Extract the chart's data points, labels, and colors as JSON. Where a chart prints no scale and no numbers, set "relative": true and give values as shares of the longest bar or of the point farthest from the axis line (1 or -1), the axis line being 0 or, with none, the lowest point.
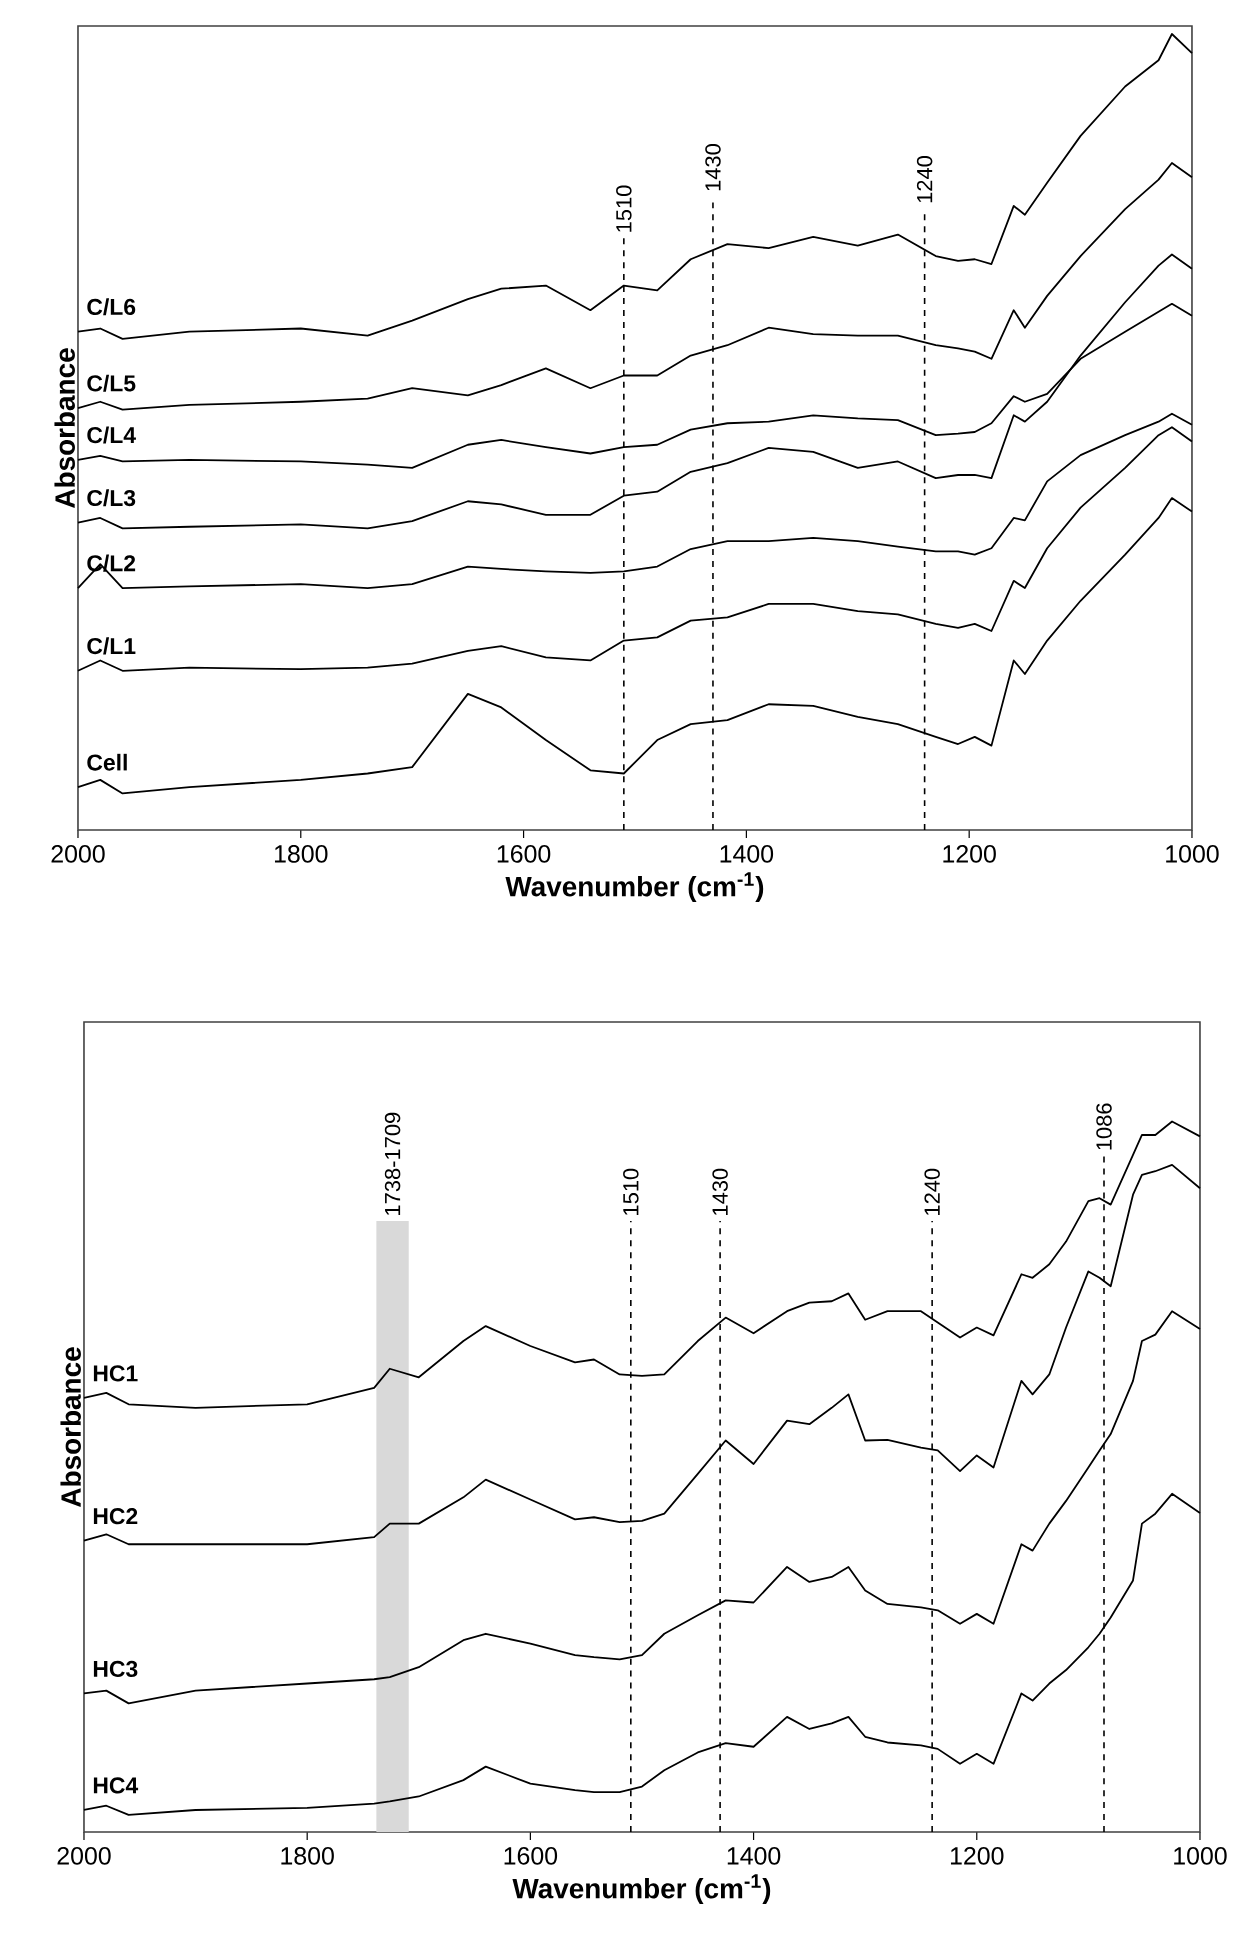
{
  "chart_data": [
    {
      "type": "line",
      "xlabel": "Wavenumber (cm$^{-1}$)",
      "ylabel": "Absorbance",
      "relative": true,
      "tick_labels": "x",
      "line_style": "solid",
      "xlim": [
        2000,
        1000
      ],
      "xticks": [
        2000,
        1800,
        1600,
        1400,
        1200,
        1000
      ],
      "x": [
        2000,
        1980,
        1960,
        1900,
        1800,
        1740,
        1700,
        1650,
        1620,
        1580,
        1540,
        1510,
        1480,
        1450,
        1417,
        1380,
        1340,
        1300,
        1264,
        1230,
        1210,
        1195,
        1180,
        1160,
        1150,
        1130,
        1100,
        1060,
        1030,
        1018,
        1000
      ],
      "series": [
        {
          "name": "C/L6",
          "color": "#000000",
          "values": [
            0.626,
            0.63,
            0.617,
            0.626,
            0.63,
            0.621,
            0.64,
            0.667,
            0.68,
            0.684,
            0.653,
            0.684,
            0.678,
            0.717,
            0.736,
            0.731,
            0.745,
            0.734,
            0.748,
            0.721,
            0.715,
            0.717,
            0.711,
            0.784,
            0.773,
            0.813,
            0.872,
            0.934,
            0.967,
            1.0,
            0.976
          ]
        },
        {
          "name": "C/L5",
          "color": "#000000",
          "values": [
            0.53,
            0.538,
            0.528,
            0.534,
            0.538,
            0.542,
            0.555,
            0.546,
            0.559,
            0.58,
            0.555,
            0.571,
            0.571,
            0.596,
            0.609,
            0.631,
            0.623,
            0.621,
            0.621,
            0.609,
            0.605,
            0.601,
            0.592,
            0.653,
            0.631,
            0.671,
            0.721,
            0.78,
            0.817,
            0.838,
            0.82
          ]
        },
        {
          "name": "C/L4",
          "color": "#000000",
          "values": [
            0.465,
            0.47,
            0.463,
            0.465,
            0.463,
            0.459,
            0.455,
            0.484,
            0.49,
            0.481,
            0.473,
            0.481,
            0.484,
            0.503,
            0.511,
            0.513,
            0.521,
            0.517,
            0.515,
            0.496,
            0.498,
            0.5,
            0.511,
            0.545,
            0.538,
            0.548,
            0.592,
            0.626,
            0.651,
            0.661,
            0.646
          ]
        },
        {
          "name": "C/L3",
          "color": "#000000",
          "values": [
            0.386,
            0.392,
            0.379,
            0.381,
            0.384,
            0.379,
            0.388,
            0.413,
            0.409,
            0.396,
            0.396,
            0.42,
            0.425,
            0.45,
            0.461,
            0.48,
            0.475,
            0.455,
            0.463,
            0.442,
            0.446,
            0.446,
            0.442,
            0.521,
            0.513,
            0.538,
            0.596,
            0.663,
            0.709,
            0.723,
            0.705
          ]
        },
        {
          "name": "C/L2",
          "color": "#000000",
          "values": [
            0.304,
            0.334,
            0.304,
            0.306,
            0.309,
            0.304,
            0.309,
            0.331,
            0.328,
            0.325,
            0.323,
            0.325,
            0.331,
            0.353,
            0.363,
            0.363,
            0.367,
            0.363,
            0.356,
            0.35,
            0.35,
            0.346,
            0.354,
            0.392,
            0.389,
            0.438,
            0.471,
            0.496,
            0.513,
            0.523,
            0.509
          ]
        },
        {
          "name": "C/L1",
          "color": "#000000",
          "values": [
            0.2,
            0.213,
            0.2,
            0.204,
            0.202,
            0.204,
            0.209,
            0.225,
            0.231,
            0.217,
            0.213,
            0.238,
            0.242,
            0.263,
            0.267,
            0.284,
            0.284,
            0.275,
            0.271,
            0.259,
            0.254,
            0.259,
            0.25,
            0.313,
            0.304,
            0.354,
            0.405,
            0.455,
            0.496,
            0.506,
            0.488
          ]
        },
        {
          "name": "Cell",
          "color": "#000000",
          "values": [
            0.054,
            0.063,
            0.046,
            0.054,
            0.063,
            0.071,
            0.079,
            0.171,
            0.154,
            0.113,
            0.075,
            0.071,
            0.113,
            0.133,
            0.138,
            0.158,
            0.156,
            0.142,
            0.133,
            0.117,
            0.108,
            0.117,
            0.106,
            0.213,
            0.196,
            0.238,
            0.288,
            0.346,
            0.392,
            0.417,
            0.4
          ]
        }
      ],
      "ref_lines": [
        {
          "axis": "x",
          "value": 1510,
          "label": "1510",
          "line_style": "dashed"
        },
        {
          "axis": "x",
          "value": 1430,
          "label": "1430",
          "line_style": "dashed"
        },
        {
          "axis": "x",
          "value": 1240,
          "label": "1240",
          "line_style": "dashed"
        }
      ]
    },
    {
      "type": "line",
      "xlabel": "Wavenumber (cm$^{-1}$)",
      "ylabel": "Absorbance",
      "relative": true,
      "tick_labels": "x",
      "line_style": "solid",
      "xlim": [
        2000,
        1000
      ],
      "xticks": [
        2000,
        1800,
        1600,
        1400,
        1200,
        1000
      ],
      "x": [
        2000,
        1980,
        1960,
        1900,
        1800,
        1740,
        1726,
        1700,
        1660,
        1640,
        1600,
        1560,
        1543,
        1520,
        1500,
        1480,
        1450,
        1425,
        1400,
        1370,
        1350,
        1330,
        1315,
        1300,
        1280,
        1250,
        1235,
        1215,
        1200,
        1185,
        1160,
        1150,
        1135,
        1120,
        1100,
        1090,
        1080,
        1060,
        1052,
        1040,
        1025,
        1000
      ],
      "series": [
        {
          "name": "HC1",
          "color": "#000000",
          "values": [
            0.611,
            0.618,
            0.602,
            0.597,
            0.602,
            0.625,
            0.652,
            0.64,
            0.691,
            0.712,
            0.684,
            0.661,
            0.665,
            0.644,
            0.642,
            0.644,
            0.691,
            0.724,
            0.702,
            0.733,
            0.745,
            0.747,
            0.758,
            0.721,
            0.733,
            0.733,
            0.717,
            0.696,
            0.71,
            0.699,
            0.785,
            0.78,
            0.799,
            0.831,
            0.888,
            0.892,
            0.883,
            0.953,
            0.981,
            0.981,
            1.0,
            0.979
          ]
        },
        {
          "name": "HC2",
          "color": "#000000",
          "values": [
            0.41,
            0.419,
            0.405,
            0.405,
            0.405,
            0.415,
            0.434,
            0.434,
            0.471,
            0.496,
            0.468,
            0.44,
            0.443,
            0.436,
            0.438,
            0.448,
            0.504,
            0.551,
            0.518,
            0.579,
            0.574,
            0.597,
            0.616,
            0.551,
            0.552,
            0.541,
            0.537,
            0.508,
            0.53,
            0.513,
            0.635,
            0.616,
            0.644,
            0.71,
            0.789,
            0.78,
            0.768,
            0.897,
            0.925,
            0.93,
            0.939,
            0.906
          ]
        },
        {
          "name": "HC3",
          "color": "#000000",
          "values": [
            0.195,
            0.199,
            0.181,
            0.199,
            0.209,
            0.215,
            0.218,
            0.232,
            0.27,
            0.279,
            0.265,
            0.249,
            0.246,
            0.243,
            0.249,
            0.279,
            0.305,
            0.326,
            0.323,
            0.373,
            0.352,
            0.359,
            0.373,
            0.34,
            0.321,
            0.316,
            0.312,
            0.293,
            0.307,
            0.293,
            0.405,
            0.396,
            0.434,
            0.466,
            0.513,
            0.537,
            0.56,
            0.635,
            0.691,
            0.7,
            0.733,
            0.708
          ]
        },
        {
          "name": "HC4",
          "color": "#000000",
          "values": [
            0.031,
            0.037,
            0.024,
            0.031,
            0.034,
            0.04,
            0.043,
            0.05,
            0.073,
            0.092,
            0.068,
            0.059,
            0.056,
            0.056,
            0.064,
            0.087,
            0.112,
            0.125,
            0.12,
            0.162,
            0.145,
            0.153,
            0.162,
            0.134,
            0.126,
            0.122,
            0.117,
            0.096,
            0.11,
            0.096,
            0.195,
            0.185,
            0.209,
            0.228,
            0.26,
            0.279,
            0.302,
            0.354,
            0.434,
            0.448,
            0.476,
            0.449
          ]
        }
      ],
      "ref_lines": [
        {
          "axis": "x",
          "value": 1510,
          "label": "1510",
          "line_style": "dashed"
        },
        {
          "axis": "x",
          "value": 1430,
          "label": "1430",
          "line_style": "dashed"
        },
        {
          "axis": "x",
          "value": 1240,
          "label": "1240",
          "line_style": "dashed"
        },
        {
          "axis": "x",
          "value": 1086,
          "label": "1086",
          "line_style": "dashed"
        }
      ],
      "bands": [
        {
          "axis": "x",
          "from": 1738,
          "to": 1709,
          "label": "1738-1709",
          "color": "#d9d9d9"
        }
      ]
    }
  ]
}
